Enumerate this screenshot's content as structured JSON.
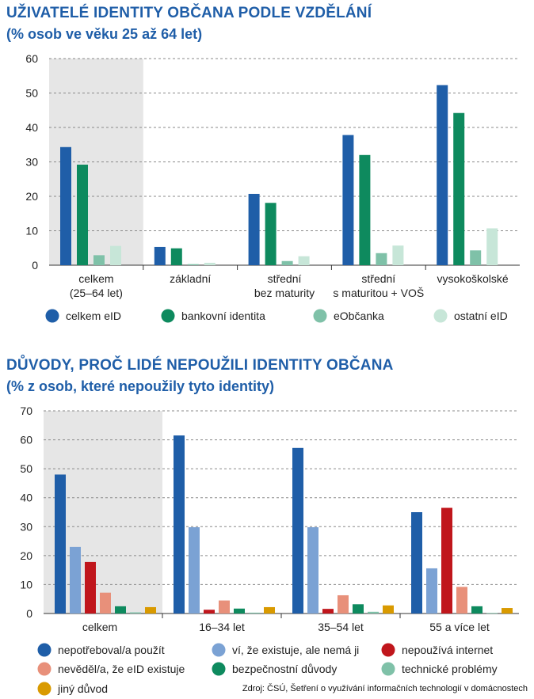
{
  "chart1": {
    "title": "UŽIVATELÉ IDENTITY OBČANA PODLE VZDĚLÁNÍ",
    "subtitle": "(% osob ve věku 25 až 64 let)"
  },
  "chart2": {
    "title": "DŮVODY, PROČ LIDÉ NEPOUŽILI IDENTITY OBČANA",
    "subtitle": "(% z osob, které nepoužily tyto identity)"
  },
  "source": "Zdroj: ČSÚ, Šetření o využívání informačních technologií v domácnostech",
  "chart_data": [
    {
      "type": "bar",
      "title": "UŽIVATELÉ IDENTITY OBČANA PODLE VZDĚLÁNÍ",
      "subtitle": "(% osob ve věku 25 až 64 let)",
      "categories": [
        [
          "celkem",
          "(25–64 let)"
        ],
        [
          "základní"
        ],
        [
          "střední",
          "bez maturity"
        ],
        [
          "střední",
          "s maturitou + VOŠ"
        ],
        [
          "vysokoškolské"
        ]
      ],
      "ylim": [
        0,
        60
      ],
      "yticks": [
        0,
        10,
        20,
        30,
        40,
        50,
        60
      ],
      "highlight_category": 0,
      "series": [
        {
          "name": "celkem eID",
          "color": "#1f5ea8",
          "values": [
            34.3,
            5.3,
            20.7,
            37.8,
            52.3
          ]
        },
        {
          "name": "bankovní identita",
          "color": "#0e8a5e",
          "values": [
            29.2,
            4.9,
            18.1,
            32.0,
            44.2
          ]
        },
        {
          "name": "eObčanka",
          "color": "#7fc1a8",
          "values": [
            2.9,
            0.3,
            1.2,
            3.5,
            4.3
          ]
        },
        {
          "name": "ostatní eID",
          "color": "#c7e6d8",
          "values": [
            5.6,
            0.7,
            2.6,
            5.7,
            10.7
          ]
        }
      ]
    },
    {
      "type": "bar",
      "title": "DŮVODY, PROČ LIDÉ NEPOUŽILI IDENTITY OBČANA",
      "subtitle": "(% z osob, které nepoužily tyto identity)",
      "categories": [
        [
          "celkem"
        ],
        [
          "16–34 let"
        ],
        [
          "35–54 let"
        ],
        [
          "55 a více let"
        ]
      ],
      "ylim": [
        0,
        70
      ],
      "yticks": [
        0,
        10,
        20,
        30,
        40,
        50,
        60,
        70
      ],
      "highlight_category": 0,
      "series": [
        {
          "name": "nepotřeboval/a použít",
          "color": "#1f5ea8",
          "values": [
            48.0,
            61.5,
            57.2,
            35.0
          ]
        },
        {
          "name": "ví, že existuje, ale nemá ji",
          "color": "#7ba2d4",
          "values": [
            23.0,
            29.8,
            29.8,
            15.6
          ]
        },
        {
          "name": "nepoužívá internet",
          "color": "#c0161c",
          "values": [
            17.8,
            1.3,
            1.6,
            36.5
          ]
        },
        {
          "name": "nevěděl/a, že eID existuje",
          "color": "#e8907a",
          "values": [
            7.2,
            4.5,
            6.3,
            9.2
          ]
        },
        {
          "name": "bezpečnostní důvody",
          "color": "#0e8a5e",
          "values": [
            2.5,
            1.7,
            3.2,
            2.5
          ]
        },
        {
          "name": "technické problémy",
          "color": "#7fc1a8",
          "values": [
            0.4,
            0.3,
            0.6,
            0.2
          ]
        },
        {
          "name": "jiný důvod",
          "color": "#d99a00",
          "values": [
            2.2,
            2.2,
            2.8,
            1.9
          ]
        }
      ]
    }
  ]
}
